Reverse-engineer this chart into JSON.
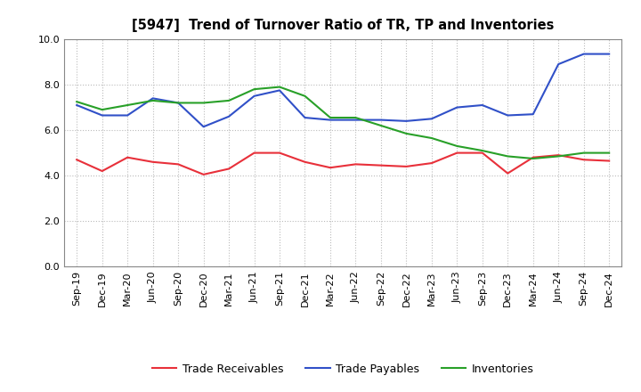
{
  "title": "[5947]  Trend of Turnover Ratio of TR, TP and Inventories",
  "labels": [
    "Sep-19",
    "Dec-19",
    "Mar-20",
    "Jun-20",
    "Sep-20",
    "Dec-20",
    "Mar-21",
    "Jun-21",
    "Sep-21",
    "Dec-21",
    "Mar-22",
    "Jun-22",
    "Sep-22",
    "Dec-22",
    "Mar-23",
    "Jun-23",
    "Sep-23",
    "Dec-23",
    "Mar-24",
    "Jun-24",
    "Sep-24",
    "Dec-24"
  ],
  "trade_receivables": [
    4.7,
    4.2,
    4.8,
    4.6,
    4.5,
    4.05,
    4.3,
    5.0,
    5.0,
    4.6,
    4.35,
    4.5,
    4.45,
    4.4,
    4.55,
    5.0,
    5.0,
    4.1,
    4.8,
    4.9,
    4.7,
    4.65
  ],
  "trade_payables": [
    7.1,
    6.65,
    6.65,
    7.4,
    7.2,
    6.15,
    6.6,
    7.5,
    7.75,
    6.55,
    6.45,
    6.45,
    6.45,
    6.4,
    6.5,
    7.0,
    7.1,
    6.65,
    6.7,
    8.9,
    9.35,
    9.35
  ],
  "inventories": [
    7.25,
    6.9,
    7.1,
    7.3,
    7.2,
    7.2,
    7.3,
    7.8,
    7.9,
    7.5,
    6.55,
    6.55,
    6.2,
    5.85,
    5.65,
    5.3,
    5.1,
    4.85,
    4.75,
    4.85,
    5.0,
    5.0
  ],
  "ylim": [
    0.0,
    10.0
  ],
  "yticks": [
    0.0,
    2.0,
    4.0,
    6.0,
    8.0,
    10.0
  ],
  "color_tr": "#e8303a",
  "color_tp": "#3050c8",
  "color_inv": "#28a028",
  "legend_tr": "Trade Receivables",
  "legend_tp": "Trade Payables",
  "legend_inv": "Inventories",
  "bg_color": "#ffffff",
  "grid_color": "#aaaaaa"
}
